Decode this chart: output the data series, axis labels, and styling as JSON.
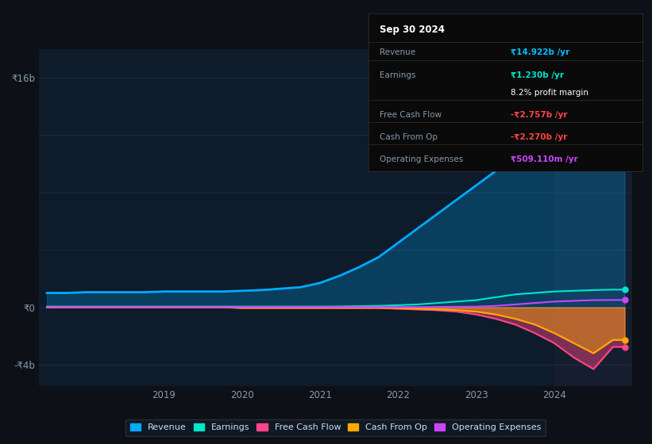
{
  "bg_color": "#0d1117",
  "plot_bg_color": "#0d1b2a",
  "future_bg_color": "#141e2e",
  "grid_color": "#1e2d3d",
  "title": "Sep 30 2024",
  "info_box_rows": [
    {
      "label": "Revenue",
      "value": "₹14.922b /yr",
      "val_color": "#00bfff",
      "is_sub": false
    },
    {
      "label": "Earnings",
      "value": "₹1.230b /yr",
      "val_color": "#00e5cc",
      "is_sub": false
    },
    {
      "label": "",
      "value": "8.2% profit margin",
      "val_color": "#ffffff",
      "is_sub": true
    },
    {
      "label": "Free Cash Flow",
      "value": "-₹2.757b /yr",
      "val_color": "#ff4444",
      "is_sub": false
    },
    {
      "label": "Cash From Op",
      "value": "-₹2.270b /yr",
      "val_color": "#ff4444",
      "is_sub": false
    },
    {
      "label": "Operating Expenses",
      "value": "₹509.110m /yr",
      "val_color": "#cc44ff",
      "is_sub": false
    }
  ],
  "years": [
    2017.5,
    2017.75,
    2018.0,
    2018.25,
    2018.5,
    2018.75,
    2019.0,
    2019.25,
    2019.5,
    2019.75,
    2020.0,
    2020.25,
    2020.5,
    2020.75,
    2021.0,
    2021.25,
    2021.5,
    2021.75,
    2022.0,
    2022.25,
    2022.5,
    2022.75,
    2023.0,
    2023.25,
    2023.5,
    2023.75,
    2024.0,
    2024.25,
    2024.5,
    2024.75,
    2024.9
  ],
  "revenue": [
    1.0,
    1.0,
    1.05,
    1.05,
    1.05,
    1.05,
    1.1,
    1.1,
    1.1,
    1.1,
    1.15,
    1.2,
    1.3,
    1.4,
    1.7,
    2.2,
    2.8,
    3.5,
    4.5,
    5.5,
    6.5,
    7.5,
    8.5,
    9.5,
    10.5,
    11.2,
    12.5,
    13.5,
    14.2,
    14.9,
    14.922
  ],
  "earnings": [
    0.05,
    0.05,
    0.05,
    0.05,
    0.05,
    0.05,
    0.05,
    0.05,
    0.05,
    0.05,
    0.05,
    0.05,
    0.05,
    0.05,
    0.05,
    0.06,
    0.08,
    0.1,
    0.15,
    0.2,
    0.3,
    0.4,
    0.5,
    0.7,
    0.9,
    1.0,
    1.1,
    1.15,
    1.2,
    1.23,
    1.23
  ],
  "free_cash_flow": [
    0.0,
    0.0,
    0.0,
    0.0,
    0.0,
    0.0,
    0.0,
    0.0,
    0.0,
    0.0,
    -0.05,
    -0.05,
    -0.05,
    -0.05,
    -0.05,
    -0.05,
    -0.05,
    -0.05,
    -0.1,
    -0.15,
    -0.2,
    -0.3,
    -0.5,
    -0.8,
    -1.2,
    -1.8,
    -2.5,
    -3.5,
    -4.3,
    -2.757,
    -2.757
  ],
  "cash_from_op": [
    0.0,
    0.0,
    0.0,
    0.0,
    0.0,
    0.0,
    0.0,
    0.0,
    0.0,
    0.0,
    -0.03,
    -0.03,
    -0.03,
    -0.03,
    -0.03,
    -0.03,
    -0.03,
    -0.03,
    -0.05,
    -0.1,
    -0.15,
    -0.2,
    -0.3,
    -0.5,
    -0.8,
    -1.2,
    -1.8,
    -2.5,
    -3.2,
    -2.27,
    -2.27
  ],
  "op_expenses": [
    0.0,
    0.0,
    0.0,
    0.0,
    0.0,
    0.0,
    0.0,
    0.0,
    0.0,
    0.0,
    0.02,
    0.02,
    0.02,
    0.02,
    0.02,
    0.02,
    0.02,
    0.02,
    0.02,
    0.02,
    0.03,
    0.04,
    0.05,
    0.1,
    0.2,
    0.3,
    0.4,
    0.45,
    0.5,
    0.509,
    0.509
  ],
  "revenue_color": "#00aaff",
  "earnings_color": "#00e5cc",
  "fcf_color": "#ff4488",
  "cfo_color": "#ffaa00",
  "opex_color": "#cc44ff",
  "future_start": 2024.0,
  "ylim": [
    -5.5,
    18
  ],
  "yticks": [
    -4,
    0,
    16
  ],
  "ytick_labels": [
    "-₹4b",
    "₹0",
    "₹16b"
  ],
  "xticks": [
    2019,
    2020,
    2021,
    2022,
    2023,
    2024
  ],
  "legend_items": [
    "Revenue",
    "Earnings",
    "Free Cash Flow",
    "Cash From Op",
    "Operating Expenses"
  ],
  "legend_colors": [
    "#00aaff",
    "#00e5cc",
    "#ff4488",
    "#ffaa00",
    "#cc44ff"
  ]
}
